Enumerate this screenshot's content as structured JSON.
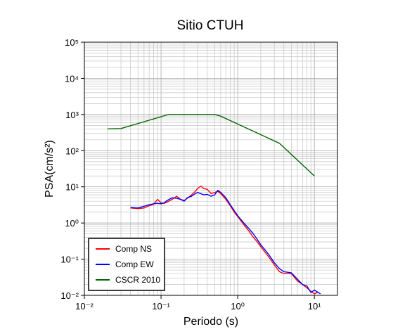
{
  "chart_data": {
    "type": "line",
    "title": "Sitio CTUH",
    "xlabel": "Periodo (s)",
    "ylabel": "PSA(cm/s²)",
    "xscale": "log",
    "yscale": "log",
    "xlim": [
      0.01,
      20
    ],
    "ylim": [
      0.01,
      100000
    ],
    "grid": true,
    "legend_position": "bottom-left",
    "x_tick_labels": [
      "10⁻²",
      "10⁻¹",
      "10⁰",
      "10¹"
    ],
    "y_tick_labels": [
      "10⁻²",
      "10⁻¹",
      "10⁰",
      "10¹",
      "10²",
      "10³",
      "10⁴",
      "10⁵"
    ],
    "series": [
      {
        "name": "Comp NS",
        "color": "#ff0000",
        "x": [
          0.04,
          0.05,
          0.06,
          0.07,
          0.08,
          0.09,
          0.1,
          0.11,
          0.12,
          0.14,
          0.16,
          0.18,
          0.2,
          0.22,
          0.25,
          0.28,
          0.3,
          0.33,
          0.36,
          0.4,
          0.45,
          0.5,
          0.55,
          0.6,
          0.7,
          0.8,
          0.9,
          1.0,
          1.2,
          1.4,
          1.6,
          1.8,
          2.0,
          2.5,
          3.0,
          3.5,
          4.0,
          5.0,
          6.0,
          7.0,
          8.0,
          9.0,
          10.0,
          11.0
        ],
        "y": [
          2.6,
          2.5,
          2.6,
          3.0,
          3.3,
          4.5,
          3.6,
          3.5,
          3.8,
          4.5,
          5.5,
          4.5,
          4.2,
          4.8,
          6.0,
          7.5,
          9.0,
          10.5,
          9.0,
          8.5,
          6.5,
          7.0,
          7.5,
          6.5,
          4.5,
          3.0,
          2.0,
          1.5,
          0.9,
          0.6,
          0.4,
          0.3,
          0.22,
          0.12,
          0.07,
          0.045,
          0.04,
          0.04,
          0.025,
          0.02,
          0.016,
          0.013,
          0.011,
          0.012
        ]
      },
      {
        "name": "Comp EW",
        "color": "#0000ff",
        "x": [
          0.04,
          0.05,
          0.06,
          0.07,
          0.08,
          0.09,
          0.1,
          0.11,
          0.12,
          0.14,
          0.16,
          0.18,
          0.2,
          0.22,
          0.25,
          0.28,
          0.3,
          0.33,
          0.36,
          0.4,
          0.45,
          0.5,
          0.55,
          0.6,
          0.7,
          0.8,
          0.9,
          1.0,
          1.2,
          1.4,
          1.6,
          1.8,
          2.0,
          2.5,
          3.0,
          3.5,
          4.0,
          5.0,
          6.0,
          7.0,
          8.0,
          9.0,
          10.0,
          12.0
        ],
        "y": [
          2.7,
          2.6,
          2.9,
          3.2,
          3.4,
          3.5,
          3.4,
          3.6,
          4.2,
          5.0,
          4.8,
          4.5,
          4.0,
          5.0,
          5.5,
          6.5,
          7.0,
          6.5,
          6.0,
          6.2,
          5.5,
          6.0,
          8.0,
          7.0,
          5.0,
          3.2,
          2.2,
          1.6,
          1.0,
          0.7,
          0.5,
          0.35,
          0.25,
          0.14,
          0.08,
          0.055,
          0.045,
          0.042,
          0.028,
          0.02,
          0.018,
          0.012,
          0.014,
          0.011
        ]
      },
      {
        "name": "CSCR 2010",
        "color": "#006400",
        "x": [
          0.02,
          0.03,
          0.125,
          0.5,
          0.6,
          3.5,
          10.0
        ],
        "y": [
          400,
          410,
          1000,
          1000,
          900,
          160,
          20
        ]
      }
    ]
  }
}
